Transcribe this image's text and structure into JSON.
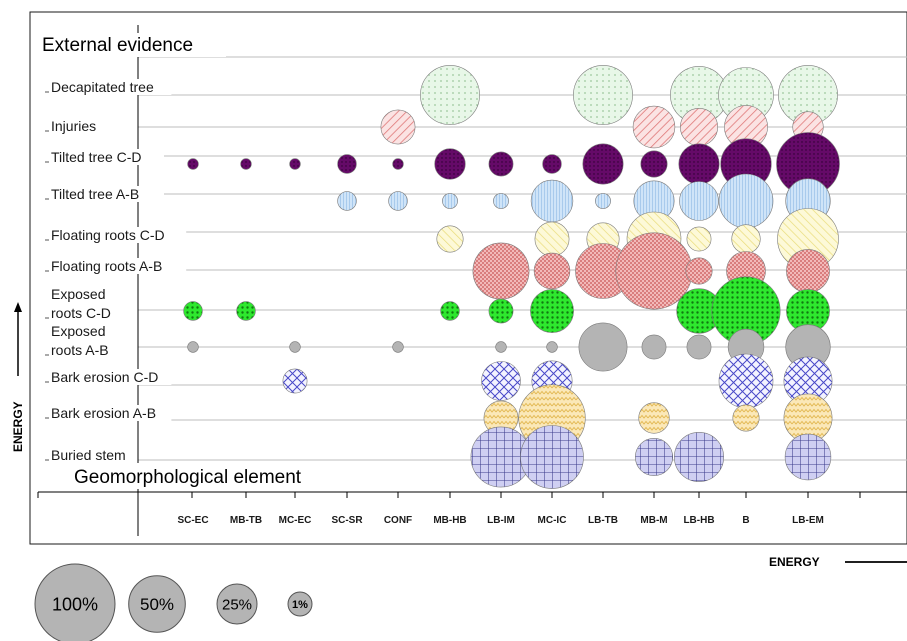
{
  "chart_data": {
    "type": "bubble",
    "header": "External evidence",
    "footer": "Geomorphological element",
    "ylabel": "ENERGY",
    "xlabel": "ENERGY",
    "categories": [
      "SC-EC",
      "MB-TB",
      "MC-EC",
      "SC-SR",
      "CONF",
      "MB-HB",
      "LB-IM",
      "MC-IC",
      "LB-TB",
      "MB-M",
      "LB-HB",
      "B",
      "LB-EM"
    ],
    "rows": [
      "Decapitated tree",
      "Injuries",
      "Tilted tree C-D",
      "Tilted tree A-B",
      "Floating roots C-D",
      "Floating roots A-B",
      "Exposed roots C-D",
      "Exposed roots A-B",
      "Bark erosion C-D",
      "Bark erosion A-B",
      "Buried stem"
    ],
    "row_labels": [
      [
        "Decapitated tree"
      ],
      [
        "Injuries"
      ],
      [
        "Tilted tree C-D"
      ],
      [
        "Tilted tree A-B"
      ],
      [
        "Floating roots C-D"
      ],
      [
        "Floating roots A-B"
      ],
      [
        "Exposed",
        "roots C-D"
      ],
      [
        "Exposed",
        "roots A-B"
      ],
      [
        "Bark erosion C-D"
      ],
      [
        "Bark erosion A-B"
      ],
      [
        "Buried stem"
      ]
    ],
    "series": [
      {
        "name": "Decapitated tree",
        "values": [
          0,
          0,
          0,
          0,
          0,
          30,
          0,
          0,
          30,
          0,
          28,
          26,
          30
        ]
      },
      {
        "name": "Injuries",
        "values": [
          0,
          0,
          0,
          0,
          10,
          0,
          0,
          0,
          0,
          15,
          12,
          16,
          8
        ]
      },
      {
        "name": "Tilted tree C-D",
        "values": [
          1,
          1,
          1,
          3,
          1,
          8,
          5,
          3,
          14,
          6,
          14,
          22,
          34
        ]
      },
      {
        "name": "Tilted tree A-B",
        "values": [
          0,
          0,
          0,
          3,
          3,
          2,
          2,
          15,
          2,
          14,
          13,
          25,
          17
        ]
      },
      {
        "name": "Floating roots C-D",
        "values": [
          0,
          0,
          0,
          0,
          0,
          6,
          0,
          10,
          9,
          25,
          5,
          7,
          32
        ]
      },
      {
        "name": "Floating roots A-B",
        "values": [
          0,
          0,
          0,
          0,
          0,
          0,
          27,
          11,
          26,
          50,
          6,
          13,
          16
        ]
      },
      {
        "name": "Exposed roots C-D",
        "values": [
          3,
          3,
          0,
          0,
          0,
          3,
          5,
          16,
          0,
          0,
          17,
          40,
          16
        ]
      },
      {
        "name": "Exposed roots A-B",
        "values": [
          1,
          0,
          1,
          0,
          1,
          0,
          1,
          1,
          20,
          5,
          5,
          11,
          17
        ]
      },
      {
        "name": "Bark erosion C-D",
        "values": [
          0,
          0,
          5,
          0,
          0,
          0,
          13,
          14,
          0,
          0,
          0,
          25,
          20
        ]
      },
      {
        "name": "Bark erosion A-B",
        "values": [
          0,
          0,
          0,
          0,
          0,
          0,
          10,
          38,
          0,
          8,
          0,
          6,
          20
        ]
      },
      {
        "name": "Buried stem",
        "values": [
          0,
          0,
          0,
          0,
          0,
          0,
          31,
          34,
          0,
          12,
          21,
          0,
          18
        ]
      }
    ],
    "series_style": [
      {
        "fill": "#e8f7e8",
        "pattern": "dots"
      },
      {
        "fill": "#f5c4c4",
        "pattern": "diag-red"
      },
      {
        "fill": "#650a68",
        "pattern": "dots-dark"
      },
      {
        "fill": "#c4def5",
        "pattern": "vert"
      },
      {
        "fill": "#fbf6c5",
        "pattern": "diag-yellow"
      },
      {
        "fill": "#e8a0a0",
        "pattern": "checker"
      },
      {
        "fill": "#27e627",
        "pattern": "dots-green"
      },
      {
        "fill": "#b2b2b2",
        "pattern": "none"
      },
      {
        "fill": "#f0f0ff",
        "pattern": "crosshatch"
      },
      {
        "fill": "#fae6b4",
        "pattern": "zigzag"
      },
      {
        "fill": "#c8c8f0",
        "pattern": "grid"
      }
    ],
    "legend": [
      {
        "label": "100%",
        "value": 100
      },
      {
        "label": "50%",
        "value": 50
      },
      {
        "label": "25%",
        "value": 25
      },
      {
        "label": "1%",
        "value": 1
      }
    ],
    "grid": true
  }
}
